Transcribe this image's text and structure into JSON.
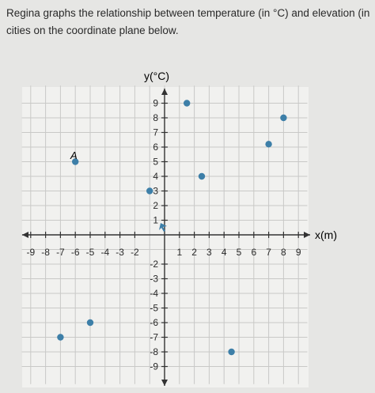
{
  "prompt": {
    "line1": "Regina graphs the relationship between temperature (in °C) and elevation (in",
    "line2": "cities on the coordinate plane below."
  },
  "chart_data": {
    "type": "scatter",
    "xlabel": "x(m)",
    "ylabel": "y(°C)",
    "xlim": [
      -9,
      9
    ],
    "ylim": [
      -9,
      9
    ],
    "grid": true,
    "x_ticks": [
      -9,
      -8,
      -7,
      -6,
      -5,
      -4,
      -3,
      -2,
      1,
      2,
      3,
      4,
      5,
      6,
      7,
      8,
      9
    ],
    "y_ticks": [
      9,
      8,
      7,
      6,
      5,
      4,
      3,
      2,
      1,
      -2,
      -3,
      -4,
      -5,
      -6,
      -7,
      -8,
      -9
    ],
    "point_label": "A",
    "points": [
      {
        "x": -6,
        "y": 5,
        "label": "A"
      },
      {
        "x": 1.5,
        "y": 9
      },
      {
        "x": 8,
        "y": 8
      },
      {
        "x": 7,
        "y": 6.2
      },
      {
        "x": 2.5,
        "y": 4
      },
      {
        "x": -1,
        "y": 3
      },
      {
        "x": -5,
        "y": -6
      },
      {
        "x": -7,
        "y": -7
      },
      {
        "x": 4.5,
        "y": -8
      }
    ],
    "point_color": "#3d7fa8",
    "origin_marker_color": "#3d7fa8"
  }
}
